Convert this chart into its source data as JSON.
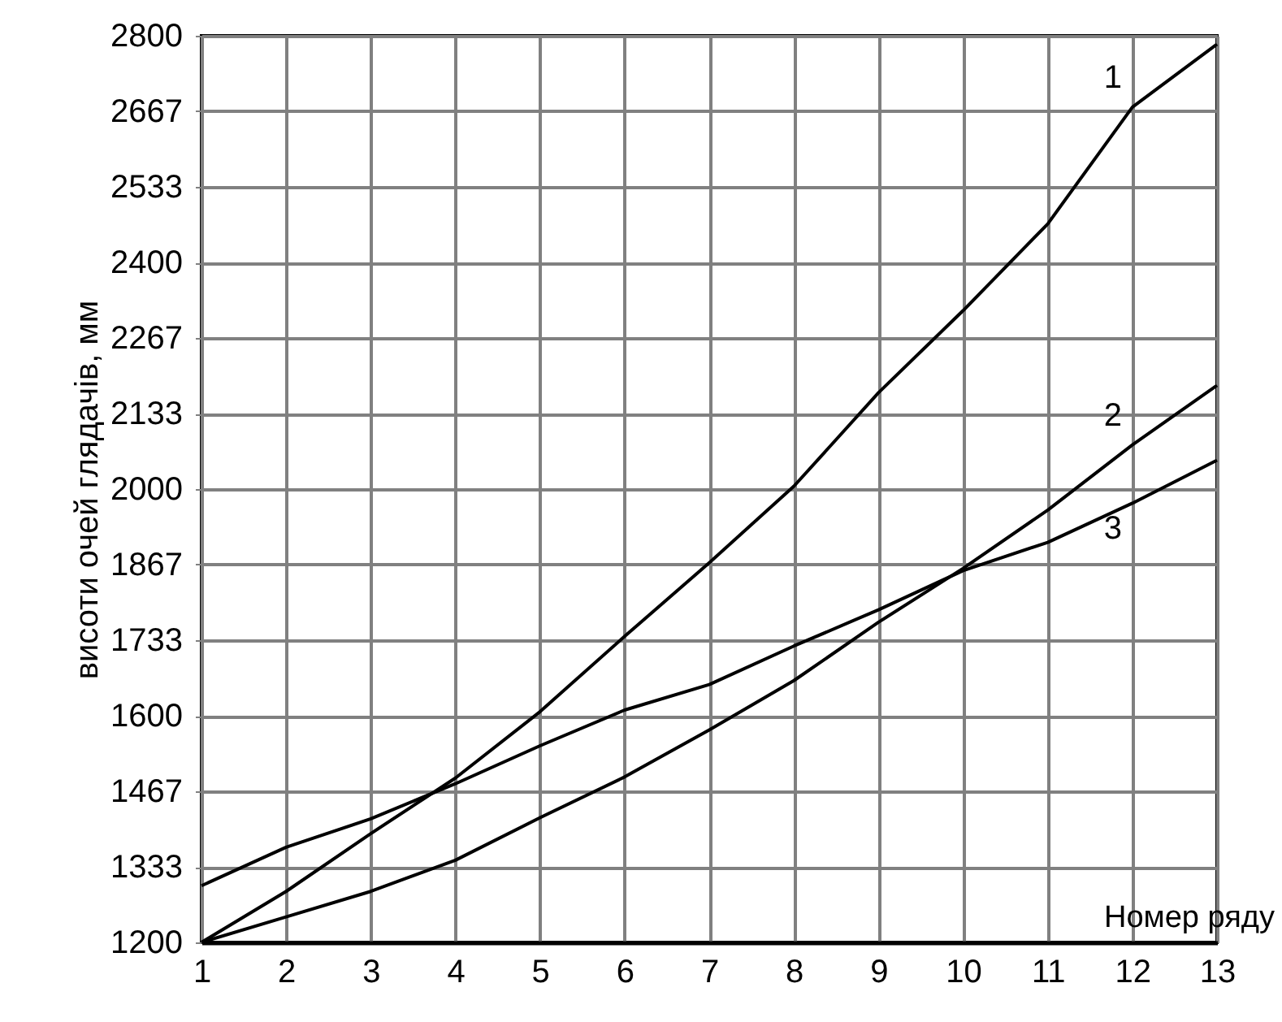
{
  "chart_data": {
    "type": "line",
    "xlabel": "Номер ряду",
    "ylabel": "висоти очей глядачів, мм",
    "x": [
      1,
      2,
      3,
      4,
      5,
      6,
      7,
      8,
      9,
      10,
      11,
      12,
      13
    ],
    "series": [
      {
        "name": "1",
        "color": "#000000",
        "values": [
          1200,
          1290,
          1392,
          1490,
          1607,
          1740,
          1870,
          2005,
          2170,
          2315,
          2468,
          2674,
          2785
        ]
      },
      {
        "name": "2",
        "color": "#000000",
        "values": [
          1200,
          1245,
          1290,
          1345,
          1420,
          1492,
          1575,
          1662,
          1765,
          1860,
          1963,
          2078,
          2183
        ]
      },
      {
        "name": "3",
        "color": "#000000",
        "values": [
          1300,
          1368,
          1418,
          1480,
          1547,
          1610,
          1655,
          1723,
          1787,
          1856,
          1906,
          1975,
          2051
        ]
      }
    ],
    "xlim": [
      1,
      13
    ],
    "xticks": [
      1,
      2,
      3,
      4,
      5,
      6,
      7,
      8,
      9,
      10,
      11,
      12,
      13
    ],
    "ylim": [
      1200,
      2800
    ],
    "yticks": [
      1200,
      1333,
      1467,
      1600,
      1733,
      1867,
      2000,
      2133,
      2267,
      2400,
      2533,
      2667,
      2800
    ],
    "grid": true,
    "marker": "none",
    "line_style": "solid"
  }
}
